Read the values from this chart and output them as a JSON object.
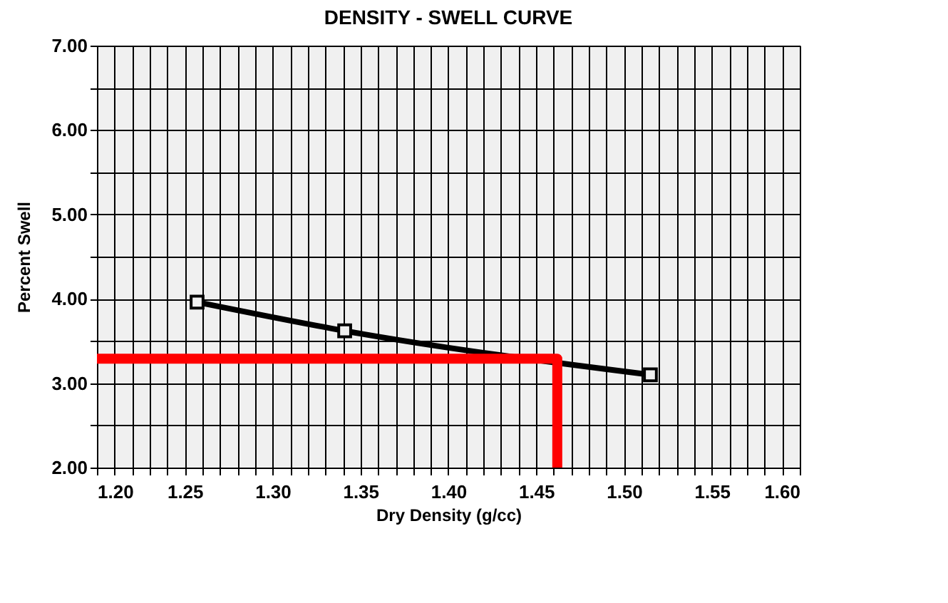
{
  "chart_data": {
    "type": "line",
    "title": "DENSITY - SWELL CURVE",
    "xlabel": "Dry Density (g/cc)",
    "ylabel": "Percent Swell",
    "xlim": [
      1.2,
      1.6
    ],
    "xticks": [
      {
        "value": 1.2,
        "label": "1.20"
      },
      {
        "value": 1.21,
        "label": null
      },
      {
        "value": 1.22,
        "label": null
      },
      {
        "value": 1.23,
        "label": null
      },
      {
        "value": 1.24,
        "label": null
      },
      {
        "value": 1.25,
        "label": "1.25"
      },
      {
        "value": 1.26,
        "label": null
      },
      {
        "value": 1.27,
        "label": null
      },
      {
        "value": 1.28,
        "label": null
      },
      {
        "value": 1.29,
        "label": null
      },
      {
        "value": 1.3,
        "label": "1.30"
      },
      {
        "value": 1.31,
        "label": null
      },
      {
        "value": 1.32,
        "label": null
      },
      {
        "value": 1.33,
        "label": null
      },
      {
        "value": 1.34,
        "label": null
      },
      {
        "value": 1.35,
        "label": "1.35"
      },
      {
        "value": 1.36,
        "label": null
      },
      {
        "value": 1.37,
        "label": null
      },
      {
        "value": 1.38,
        "label": null
      },
      {
        "value": 1.39,
        "label": null
      },
      {
        "value": 1.4,
        "label": "1.40"
      },
      {
        "value": 1.41,
        "label": null
      },
      {
        "value": 1.42,
        "label": null
      },
      {
        "value": 1.43,
        "label": null
      },
      {
        "value": 1.44,
        "label": null
      },
      {
        "value": 1.45,
        "label": "1.45"
      },
      {
        "value": 1.46,
        "label": null
      },
      {
        "value": 1.47,
        "label": null
      },
      {
        "value": 1.48,
        "label": null
      },
      {
        "value": 1.49,
        "label": null
      },
      {
        "value": 1.5,
        "label": "1.50"
      },
      {
        "value": 1.51,
        "label": null
      },
      {
        "value": 1.52,
        "label": null
      },
      {
        "value": 1.53,
        "label": null
      },
      {
        "value": 1.54,
        "label": null
      },
      {
        "value": 1.55,
        "label": "1.55"
      },
      {
        "value": 1.56,
        "label": null
      },
      {
        "value": 1.57,
        "label": null
      },
      {
        "value": 1.58,
        "label": null
      },
      {
        "value": 1.59,
        "label": null
      },
      {
        "value": 1.6,
        "label": "1.60"
      }
    ],
    "ylim": [
      2,
      7
    ],
    "yticks": [
      {
        "value": 2,
        "label": "2.00"
      },
      {
        "value": 2.5,
        "label": null
      },
      {
        "value": 3,
        "label": "3.00"
      },
      {
        "value": 3.5,
        "label": null
      },
      {
        "value": 4,
        "label": "4.00"
      },
      {
        "value": 4.5,
        "label": null
      },
      {
        "value": 5,
        "label": "5.00"
      },
      {
        "value": 5.5,
        "label": null
      },
      {
        "value": 6,
        "label": "6.00"
      },
      {
        "value": 6.5,
        "label": null
      },
      {
        "value": 7,
        "label": "7.00"
      }
    ],
    "grid": true,
    "marker": "square",
    "series": [
      {
        "color": "#000000",
        "x": [
          1.257,
          1.341,
          1.515
        ],
        "values": [
          3.96,
          3.62,
          3.1
        ]
      },
      {
        "color": "#ff0000",
        "marker": "none",
        "x": [
          1.2,
          1.462,
          1.462
        ],
        "values": [
          3.29,
          3.29,
          2.0
        ]
      }
    ]
  }
}
